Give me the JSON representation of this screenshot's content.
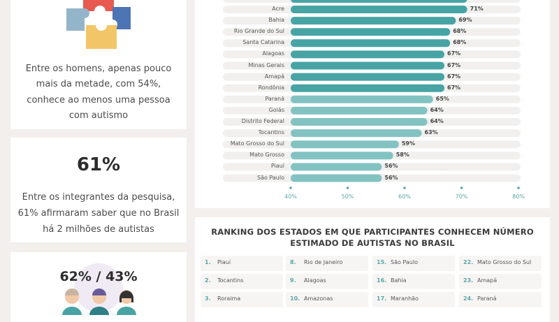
{
  "stats": {
    "men_text": "Entre os homens, apenas pouco mais da metade, com 54%, conhece ao menos uma pessoa com autismo",
    "men_lines": [
      "Entre os homens, apenas pouco",
      "mais da metade, com 54%,",
      "conhece ao menos uma pessoa",
      "com autismo"
    ],
    "pct_61": "61%",
    "text_61_lines": [
      "Entre os integrantes da pesquisa,",
      "61% afirmaram saber que no Brasil",
      "há 2 milhões de autistas"
    ],
    "pct_62_43": "62% / 43%"
  },
  "colors": {
    "bar_dark": "#48a4a4",
    "bar_light": "#82c3c2",
    "bar_track": "#f1f0ef",
    "accent": "#5aa6a7",
    "puzzle": [
      "#e85a4f",
      "#94b4c9",
      "#4d74b3",
      "#f2c568"
    ]
  },
  "chart_data": {
    "type": "bar",
    "orientation": "horizontal",
    "categories": [
      "Acre",
      "Bahia",
      "Rio Grande do Sul",
      "Santa Catarina",
      "Alagoas",
      "Minas Gerais",
      "Amapá",
      "Rondônia",
      "Paraná",
      "Goiás",
      "Distrito Federal",
      "Tocantins",
      "Mato Grosso do Sul",
      "Mato Grosso",
      "Piauí",
      "São Paulo"
    ],
    "values": [
      71,
      69,
      68,
      68,
      67,
      67,
      67,
      67,
      65,
      64,
      64,
      63,
      59,
      58,
      56,
      56
    ],
    "value_labels": [
      "71%",
      "69%",
      "68%",
      "68%",
      "67%",
      "67%",
      "67%",
      "67%",
      "65%",
      "64%",
      "64%",
      "63%",
      "59%",
      "58%",
      "56%",
      "56%"
    ],
    "xticks": [
      40,
      50,
      60,
      70,
      80
    ],
    "xtick_labels": [
      "40%",
      "50%",
      "60%",
      "70%",
      "80%"
    ],
    "xlim": [
      40,
      80
    ],
    "partial_top_row_value": 71,
    "partial_top_row_label": "71%"
  },
  "ranking": {
    "title_lines": [
      "RANKING DOS ESTADOS EM QUE PARTICIPANTES CONHECEM NÚMERO",
      "ESTIMADO DE AUTISTAS NO BRASIL"
    ],
    "columns": [
      [
        {
          "n": "1.",
          "name": "Piauí"
        },
        {
          "n": "2.",
          "name": "Tocantins"
        },
        {
          "n": "3.",
          "name": "Roraima"
        }
      ],
      [
        {
          "n": "8.",
          "name": "Rio de Janeiro"
        },
        {
          "n": "9.",
          "name": "Alagoas"
        },
        {
          "n": "10.",
          "name": "Amazonas"
        }
      ],
      [
        {
          "n": "15.",
          "name": "São Paulo"
        },
        {
          "n": "16.",
          "name": "Bahia"
        },
        {
          "n": "17.",
          "name": "Maranhão"
        }
      ],
      [
        {
          "n": "22.",
          "name": "Mato Grosso do Sul"
        },
        {
          "n": "23.",
          "name": "Amapá"
        },
        {
          "n": "24.",
          "name": "Paraná"
        }
      ]
    ]
  }
}
